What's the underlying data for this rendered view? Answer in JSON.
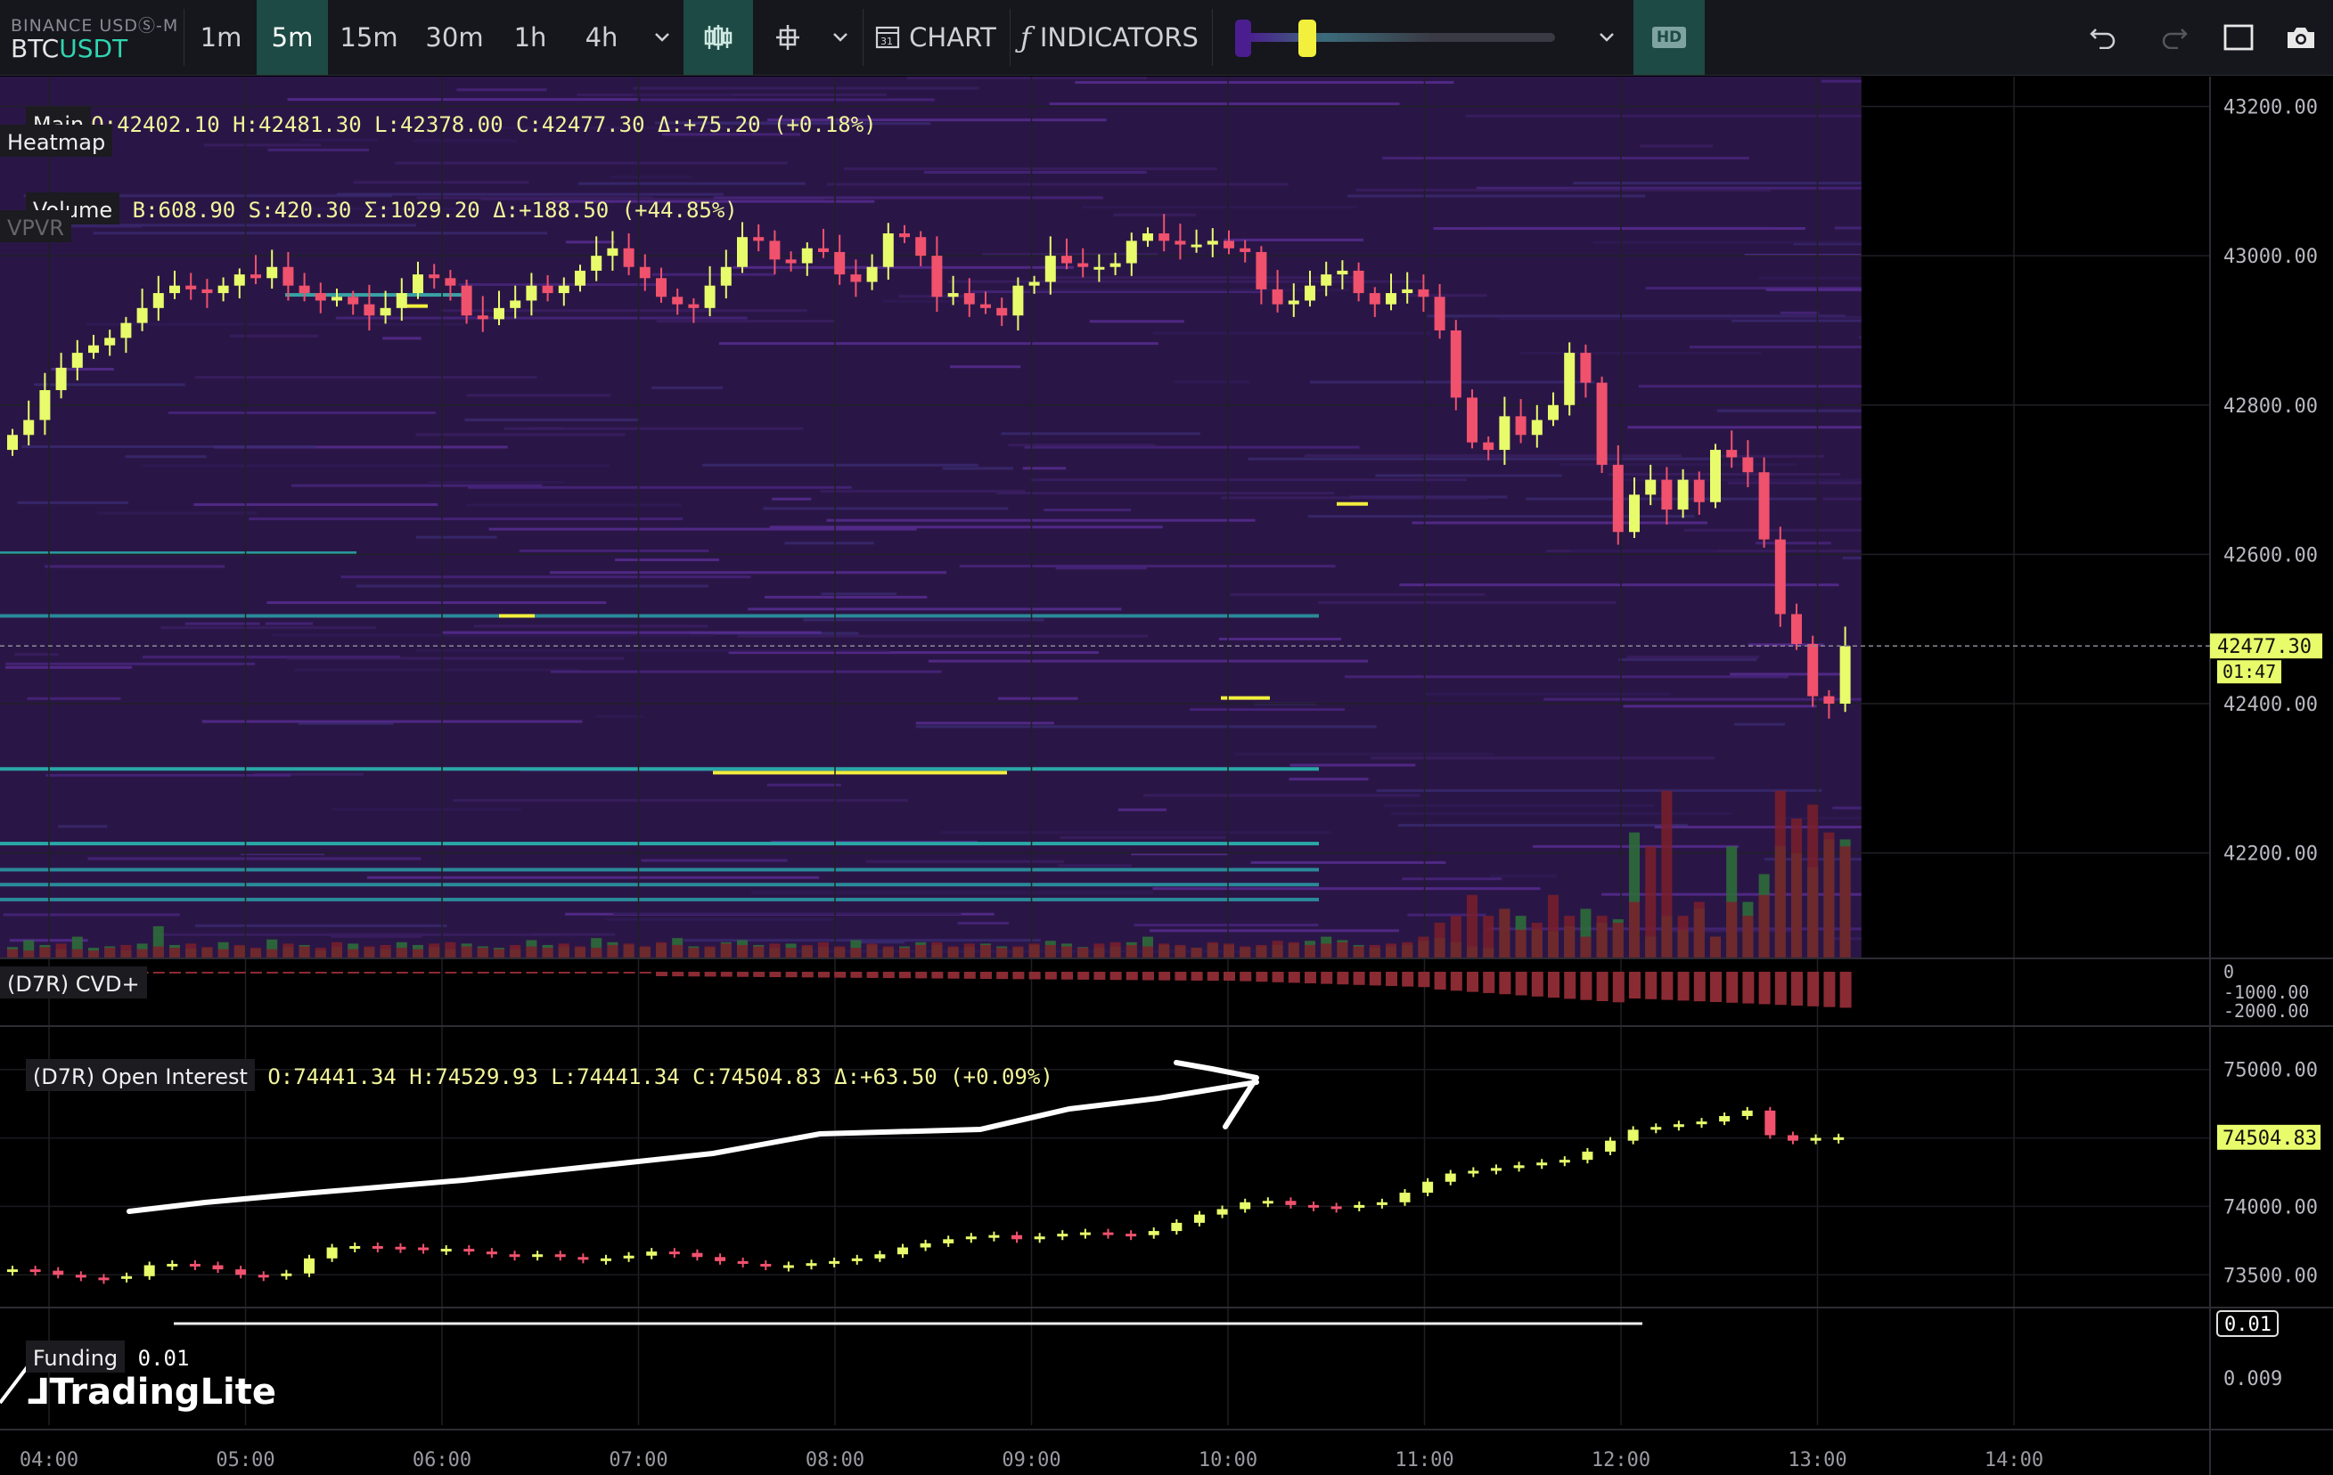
{
  "symbol": {
    "exchange": "BINANCE USDⓈ-M",
    "base": "BTC",
    "quote": "USDT"
  },
  "toolbar": {
    "timeframes": [
      "1m",
      "5m",
      "15m",
      "30m",
      "1h",
      "4h"
    ],
    "active_timeframe": "5m",
    "chart_label": "CHART",
    "indicators_label": "INDICATORS",
    "hd_label": "HD"
  },
  "legend": {
    "main_label": "Main",
    "main_ohlc": "O:42402.10 H:42481.30 L:42378.00 C:42477.30 Δ:+75.20 (+0.18%)",
    "heatmap_label": "Heatmap",
    "volume_label": "Volume",
    "volume_values": "B:608.90 S:420.30 Σ:1029.20 Δ:+188.50 (+44.85%)",
    "vpvr_label": "VPVR",
    "cvd_label": "(D7R) CVD+",
    "oi_label": "(D7R) Open Interest",
    "oi_values": "O:74441.34 H:74529.93 L:74441.34 C:74504.83 Δ:+63.50 (+0.09%)",
    "funding_label": "Funding",
    "funding_value": "0.01"
  },
  "brand": "TradingLite",
  "colors": {
    "up": "#e8fb6b",
    "down": "#f0516d",
    "accent": "#2fd6b0",
    "heat_bg": "#2a1646"
  },
  "chart_data": [
    {
      "type": "candlestick",
      "name": "BTCUSDT 5m",
      "x_ticks": [
        "04:00",
        "05:00",
        "06:00",
        "07:00",
        "08:00",
        "09:00",
        "10:00",
        "11:00",
        "12:00",
        "13:00",
        "14:00"
      ],
      "y_ticks": [
        43200,
        43000,
        42800,
        42600,
        42400,
        42200
      ],
      "ylim": [
        42060,
        43240
      ],
      "current_price": "42477.30",
      "countdown": "01:47",
      "closes": [
        42760,
        42780,
        42820,
        42850,
        42870,
        42880,
        42890,
        42910,
        42930,
        42950,
        42960,
        42955,
        42950,
        42960,
        42975,
        42970,
        42985,
        42960,
        42950,
        42940,
        42945,
        42935,
        42920,
        42930,
        42950,
        42975,
        42970,
        42960,
        42920,
        42915,
        42930,
        42940,
        42960,
        42950,
        42960,
        42980,
        43000,
        43010,
        42985,
        42970,
        42945,
        42935,
        42930,
        42960,
        42985,
        43025,
        43020,
        42995,
        42990,
        43010,
        43005,
        42975,
        42965,
        42985,
        43030,
        43025,
        43000,
        42945,
        42950,
        42935,
        42930,
        42920,
        42960,
        42965,
        43000,
        42990,
        42985,
        42985,
        42990,
        43020,
        43030,
        43020,
        43015,
        43015,
        43020,
        43010,
        43005,
        42955,
        42935,
        42940,
        42960,
        42975,
        42980,
        42950,
        42935,
        42950,
        42955,
        42945,
        42900,
        42810,
        42750,
        42740,
        42785,
        42760,
        42780,
        42800,
        42870,
        42830,
        42720,
        42630,
        42680,
        42700,
        42660,
        42700,
        42670,
        42740,
        42730,
        42710,
        42620,
        42520,
        42480,
        42410,
        42400,
        42477.3
      ],
      "volume_buy": [
        15,
        25,
        18,
        12,
        30,
        14,
        16,
        10,
        20,
        45,
        18,
        13,
        14,
        22,
        16,
        12,
        26,
        15,
        18,
        10,
        15,
        20,
        14,
        12,
        22,
        18,
        15,
        12,
        20,
        16,
        14,
        12,
        25,
        18,
        16,
        14,
        28,
        22,
        18,
        15,
        20,
        28,
        16,
        14,
        22,
        25,
        18,
        14,
        20,
        16,
        15,
        14,
        25,
        18,
        14,
        16,
        22,
        18,
        14,
        15,
        20,
        16,
        14,
        18,
        24,
        20,
        15,
        14,
        16,
        22,
        30,
        18,
        16,
        14,
        20,
        18,
        14,
        16,
        18,
        20,
        24,
        30,
        25,
        18,
        14,
        16,
        18,
        24,
        28,
        22,
        16,
        14,
        70,
        60,
        40,
        38,
        45,
        70,
        50,
        55,
        180,
        30,
        60,
        40,
        70,
        30,
        160,
        80,
        120,
        160,
        150,
        130,
        170,
        170
      ],
      "volume_sell": [
        12,
        10,
        15,
        20,
        12,
        10,
        14,
        18,
        12,
        16,
        14,
        20,
        15,
        12,
        18,
        14,
        12,
        20,
        16,
        14,
        22,
        12,
        16,
        18,
        14,
        12,
        20,
        22,
        16,
        14,
        12,
        18,
        16,
        14,
        20,
        16,
        14,
        18,
        20,
        16,
        22,
        18,
        14,
        16,
        20,
        18,
        16,
        20,
        14,
        18,
        22,
        16,
        14,
        20,
        16,
        14,
        18,
        22,
        16,
        20,
        18,
        14,
        16,
        20,
        18,
        16,
        14,
        20,
        22,
        18,
        16,
        20,
        18,
        14,
        22,
        20,
        16,
        18,
        24,
        22,
        18,
        20,
        22,
        16,
        18,
        20,
        22,
        30,
        50,
        60,
        90,
        60,
        70,
        40,
        50,
        90,
        60,
        30,
        60,
        50,
        80,
        160,
        240,
        60,
        80,
        30,
        80,
        60,
        90,
        240,
        200,
        220,
        180,
        160
      ],
      "cvd_ticks": [
        "0",
        "-1000.00",
        "-2000.00"
      ],
      "oi_ticks": [
        75000,
        74500,
        74000,
        73500
      ],
      "oi_current": "74504.83",
      "oi_closes": [
        73540,
        73530,
        73500,
        73480,
        73475,
        73490,
        73570,
        73580,
        73570,
        73540,
        73500,
        73495,
        73510,
        73620,
        73700,
        73710,
        73705,
        73700,
        73680,
        73690,
        73670,
        73650,
        73640,
        73650,
        73630,
        73610,
        73620,
        73640,
        73670,
        73660,
        73630,
        73600,
        73580,
        73560,
        73570,
        73585,
        73600,
        73620,
        73650,
        73700,
        73730,
        73760,
        73780,
        73790,
        73760,
        73780,
        73800,
        73810,
        73800,
        73790,
        73820,
        73880,
        73940,
        73980,
        74030,
        74040,
        74010,
        74000,
        73990,
        74010,
        74030,
        74100,
        74180,
        74240,
        74260,
        74280,
        74300,
        74320,
        74340,
        74400,
        74480,
        74560,
        74580,
        74600,
        74620,
        74660,
        74700,
        74520,
        74480,
        74500,
        74504.83
      ],
      "funding_ticks": [
        "0.01",
        "0.009"
      ],
      "funding_value": 0.01
    }
  ]
}
